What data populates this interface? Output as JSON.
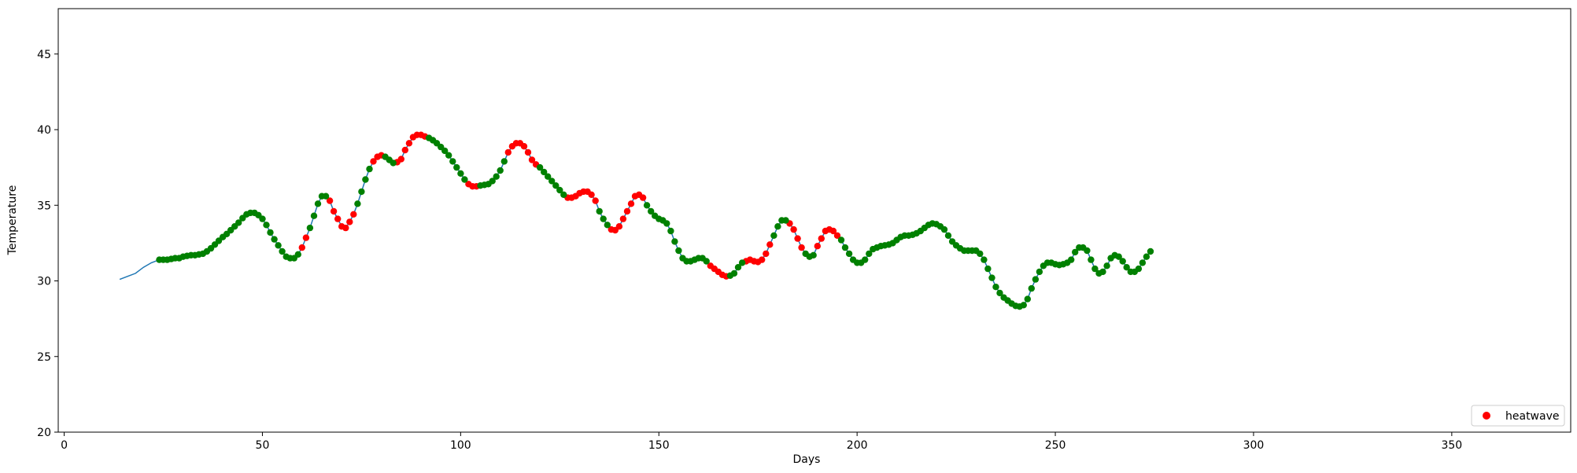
{
  "chart_data": {
    "type": "scatter",
    "xlabel": "Days",
    "ylabel": "Temperature",
    "xlim": [
      -1.5,
      380
    ],
    "ylim": [
      20,
      48
    ],
    "xticks": [
      0,
      50,
      100,
      150,
      200,
      250,
      300,
      350
    ],
    "yticks": [
      20,
      25,
      30,
      35,
      40,
      45
    ],
    "grid": false,
    "legend": {
      "placement": "bottom-right",
      "entries": [
        "heatwave"
      ]
    },
    "colors": {
      "line": "#1f77b4",
      "heatwave": "#ff0000",
      "normal": "#008000"
    },
    "line": {
      "x": [
        14,
        16,
        18,
        20,
        22,
        24
      ],
      "y": [
        30.1,
        30.3,
        30.5,
        30.9,
        31.2,
        31.4
      ]
    },
    "series": [
      {
        "name": "heatwave",
        "x_start": 24,
        "values": [
          31.4,
          31.4,
          31.4,
          31.45,
          31.5,
          31.5,
          31.6,
          31.65,
          31.7,
          31.7,
          31.75,
          31.8,
          31.95,
          32.15,
          32.4,
          32.65,
          32.9,
          33.1,
          33.35,
          33.6,
          33.85,
          34.15,
          34.4,
          34.5,
          34.5,
          34.35,
          34.1,
          33.7,
          33.2,
          32.75,
          32.35,
          31.95,
          31.6,
          31.5,
          31.5,
          31.75,
          32.2,
          32.85,
          33.5,
          34.3,
          35.1,
          35.6,
          35.6,
          35.3,
          34.6,
          34.1,
          33.6,
          33.5,
          33.9,
          34.4,
          35.1,
          35.9,
          36.7,
          37.4,
          37.9,
          38.2,
          38.3,
          38.2,
          38.0,
          37.8,
          37.85,
          38.05,
          38.65,
          39.1,
          39.5,
          39.65,
          39.65,
          39.55,
          39.45,
          39.3,
          39.1,
          38.85,
          38.6,
          38.3,
          37.9,
          37.5,
          37.1,
          36.7,
          36.4,
          36.25,
          36.25,
          36.3,
          36.35,
          36.4,
          36.6,
          36.9,
          37.3,
          37.9,
          38.5,
          38.9,
          39.1,
          39.1,
          38.9,
          38.5,
          38.0,
          37.7,
          37.5,
          37.2,
          36.9,
          36.6,
          36.3,
          36.0,
          35.7,
          35.5,
          35.5,
          35.6,
          35.8,
          35.9,
          35.9,
          35.7,
          35.3,
          34.6,
          34.1,
          33.7,
          33.4,
          33.35,
          33.6,
          34.1,
          34.6,
          35.1,
          35.6,
          35.7,
          35.5,
          35.0,
          34.6,
          34.3,
          34.1,
          34.0,
          33.8,
          33.3,
          32.6,
          32.0,
          31.5,
          31.3,
          31.3,
          31.4,
          31.5,
          31.5,
          31.3,
          31.0,
          30.8,
          30.6,
          30.4,
          30.3,
          30.35,
          30.5,
          30.9,
          31.2,
          31.3,
          31.4,
          31.3,
          31.25,
          31.4,
          31.8,
          32.4,
          33.0,
          33.6,
          34.0,
          34.0,
          33.8,
          33.4,
          32.8,
          32.2,
          31.8,
          31.6,
          31.7,
          32.3,
          32.8,
          33.3,
          33.4,
          33.3,
          33.0,
          32.7,
          32.2,
          31.8,
          31.4,
          31.2,
          31.2,
          31.4,
          31.8,
          32.1,
          32.2,
          32.3,
          32.35,
          32.4,
          32.5,
          32.7,
          32.9,
          33.0,
          33.0,
          33.05,
          33.15,
          33.3,
          33.5,
          33.7,
          33.8,
          33.75,
          33.6,
          33.4,
          33.0,
          32.6,
          32.35,
          32.15,
          32.0,
          32.0,
          32.0,
          32.0,
          31.8,
          31.4,
          30.8,
          30.2,
          29.6,
          29.2,
          28.9,
          28.7,
          28.5,
          28.35,
          28.3,
          28.4,
          28.8,
          29.5,
          30.1,
          30.6,
          31.0,
          31.2,
          31.2,
          31.1,
          31.05,
          31.1,
          31.2,
          31.4,
          31.9,
          32.2,
          32.2,
          32.0,
          31.4,
          30.8,
          30.5,
          30.6,
          31.0,
          31.5,
          31.7,
          31.6,
          31.3,
          30.9,
          30.6,
          30.6,
          30.8,
          31.2,
          31.6,
          31.95
        ],
        "heatwave_ranges": [
          [
            60,
            61
          ],
          [
            67,
            73
          ],
          [
            78,
            80
          ],
          [
            84,
            91
          ],
          [
            102,
            104
          ],
          [
            112,
            119
          ],
          [
            127,
            134
          ],
          [
            138,
            146
          ],
          [
            163,
            167
          ],
          [
            172,
            178
          ],
          [
            183,
            186
          ],
          [
            190,
            195
          ]
        ]
      }
    ]
  }
}
